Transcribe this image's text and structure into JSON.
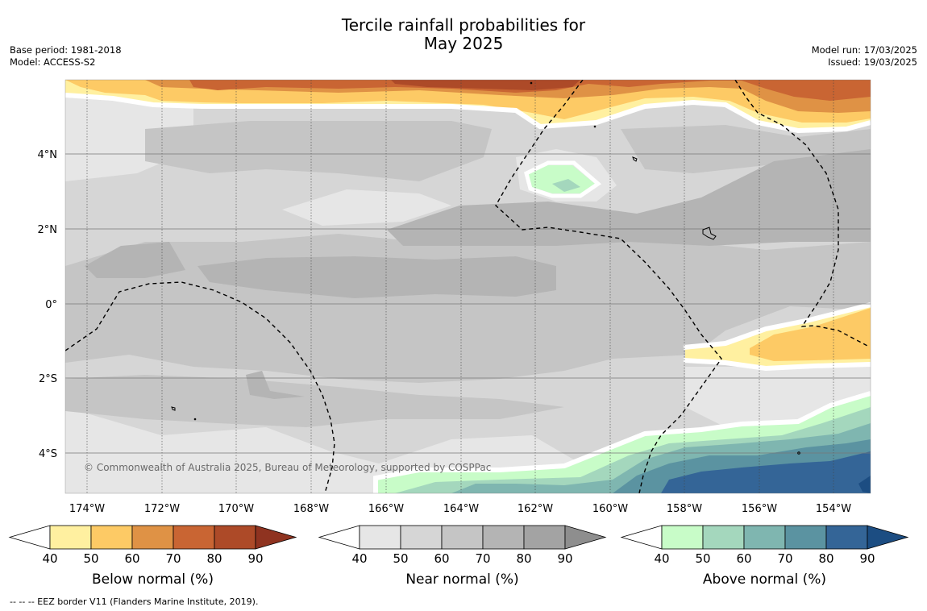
{
  "header": {
    "title_line1": "Tercile rainfall probabilities for",
    "title_line2": "May 2025",
    "base_period": "Base period: 1981-2018",
    "model": "Model: ACCESS-S2",
    "model_run": "Model run: 17/03/2025",
    "issued": "Issued: 19/03/2025"
  },
  "map": {
    "lon_ticks": [
      "174°W",
      "172°W",
      "170°W",
      "168°W",
      "166°W",
      "164°W",
      "162°W",
      "160°W",
      "158°W",
      "156°W",
      "154°W"
    ],
    "lat_ticks": [
      "4°N",
      "2°N",
      "0°",
      "2°S",
      "4°S"
    ],
    "lon_range": [
      -174.6,
      -153.0
    ],
    "lat_range": [
      -5.1,
      6.0
    ],
    "copyright": "© Commonwealth of Australia 2025, Bureau of Meteorology, supported by COSPPac"
  },
  "legends": [
    {
      "label": "Below normal (%)",
      "ticks": [
        "40",
        "50",
        "60",
        "70",
        "80",
        "90"
      ],
      "colors": [
        "#fff0a0",
        "#fdca65",
        "#df9245",
        "#c96533",
        "#ad4a28",
        "#8f3320"
      ]
    },
    {
      "label": "Near normal (%)",
      "ticks": [
        "40",
        "50",
        "60",
        "70",
        "80",
        "90"
      ],
      "colors": [
        "#e6e6e6",
        "#d6d6d6",
        "#c5c5c5",
        "#b4b4b4",
        "#a3a3a3",
        "#8e8e8e"
      ]
    },
    {
      "label": "Above normal (%)",
      "ticks": [
        "40",
        "50",
        "60",
        "70",
        "80",
        "90"
      ],
      "colors": [
        "#c8fcc8",
        "#a4d7bd",
        "#7fb6b0",
        "#5b93a1",
        "#346597",
        "#1c4d82"
      ]
    }
  ],
  "footer": {
    "eez_note": "--  --  -- EEZ border V11 (Flanders Marine Institute, 2019)."
  }
}
